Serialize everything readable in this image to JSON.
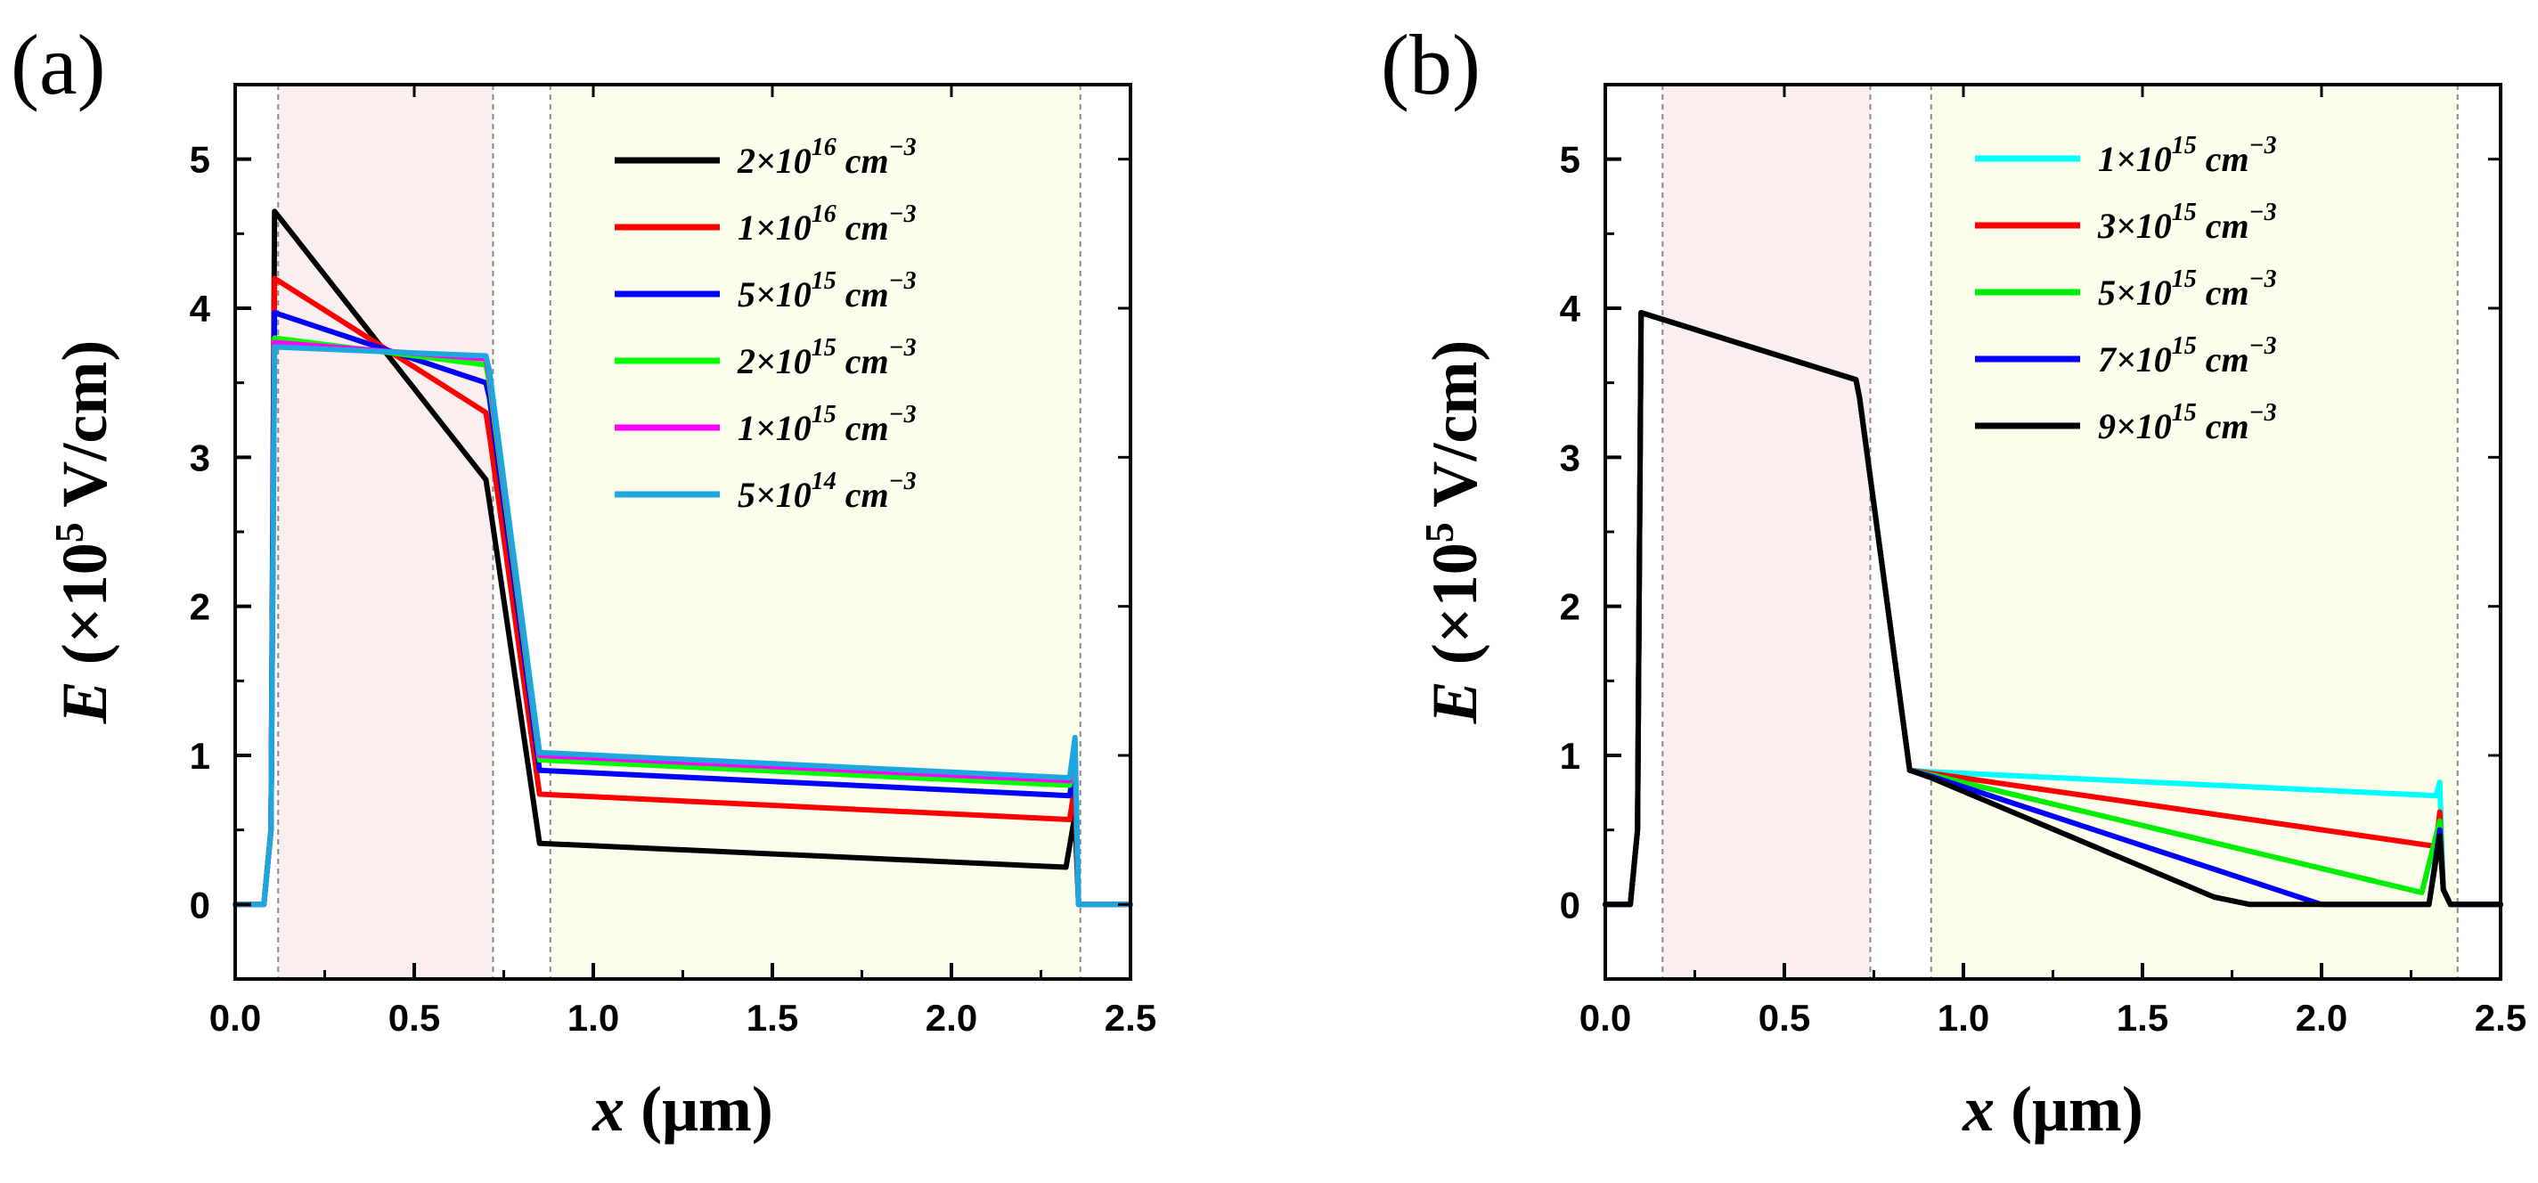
{
  "figure": {
    "panels": [
      {
        "id": "a",
        "label": "(a)",
        "xlabel_var": "x",
        "xlabel_unit": " (μm)",
        "ylabel_var": "E",
        "ylabel_unit_pre": " (×10",
        "ylabel_unit_exp": "5",
        "ylabel_unit_post": " V/cm)",
        "x_ticks": [
          "0.0",
          "0.5",
          "1.0",
          "1.5",
          "2.0",
          "2.5"
        ],
        "y_ticks": [
          "0",
          "1",
          "2",
          "3",
          "4",
          "5"
        ],
        "regions_color": {
          "pink": "#fbeeee",
          "yellow": "#fcfdeb",
          "boundary": "#888888"
        }
      },
      {
        "id": "b",
        "label": "(b)",
        "xlabel_var": "x",
        "xlabel_unit": " (μm)",
        "ylabel_var": "E",
        "ylabel_unit_pre": " (×10",
        "ylabel_unit_exp": "5",
        "ylabel_unit_post": " V/cm)",
        "x_ticks": [
          "0.0",
          "0.5",
          "1.0",
          "1.5",
          "2.0",
          "2.5"
        ],
        "y_ticks": [
          "0",
          "1",
          "2",
          "3",
          "4",
          "5"
        ],
        "regions_color": {
          "pink": "#fbeeee",
          "yellow": "#fcfdeb",
          "boundary": "#888888"
        }
      }
    ]
  },
  "chart_data": [
    {
      "type": "line",
      "panel": "a",
      "title": "",
      "xlabel": "x (μm)",
      "ylabel": "E (×10^5 V/cm)",
      "xlim": [
        0,
        2.5
      ],
      "ylim": [
        -0.5,
        5.5
      ],
      "x_ticks": [
        0,
        0.5,
        1,
        1.5,
        2,
        2.5
      ],
      "y_ticks": [
        0,
        1,
        2,
        3,
        4,
        5
      ],
      "legend_position": "top-right",
      "shaded_regions": [
        {
          "x0": 0.12,
          "x1": 0.72,
          "color": "pink"
        },
        {
          "x0": 0.88,
          "x1": 2.36,
          "color": "yellow"
        }
      ],
      "boundaries": [
        0.12,
        0.72,
        0.88,
        2.36
      ],
      "series": [
        {
          "name": "2×10^16 cm^-3",
          "base": "2×10",
          "exp": "16",
          "unit": " cm",
          "unit_exp": "−3",
          "color": "#000000",
          "x": [
            0,
            0.08,
            0.1,
            0.11,
            0.7,
            0.71,
            0.85,
            2.32,
            2.345,
            2.355,
            2.37,
            2.5
          ],
          "y": [
            0,
            0,
            0.5,
            4.65,
            2.85,
            2.7,
            0.41,
            0.25,
            0.6,
            0,
            0,
            0
          ]
        },
        {
          "name": "1×10^16 cm^-3",
          "base": "1×10",
          "exp": "16",
          "unit": " cm",
          "unit_exp": "−3",
          "color": "#ff0000",
          "x": [
            0,
            0.08,
            0.1,
            0.11,
            0.7,
            0.71,
            0.85,
            2.33,
            2.345,
            2.355,
            2.37,
            2.5
          ],
          "y": [
            0,
            0,
            0.5,
            4.2,
            3.3,
            3.15,
            0.74,
            0.57,
            0.8,
            0,
            0,
            0
          ]
        },
        {
          "name": "5×10^15 cm^-3",
          "base": "5×10",
          "exp": "15",
          "unit": " cm",
          "unit_exp": "−3",
          "color": "#0000ff",
          "x": [
            0,
            0.08,
            0.1,
            0.11,
            0.7,
            0.71,
            0.85,
            2.33,
            2.345,
            2.355,
            2.37,
            2.5
          ],
          "y": [
            0,
            0,
            0.5,
            3.97,
            3.5,
            3.4,
            0.9,
            0.73,
            0.95,
            0,
            0,
            0
          ]
        },
        {
          "name": "2×10^15 cm^-3",
          "base": "2×10",
          "exp": "15",
          "unit": " cm",
          "unit_exp": "−3",
          "color": "#00ff00",
          "x": [
            0,
            0.08,
            0.1,
            0.11,
            0.7,
            0.71,
            0.85,
            2.33,
            2.345,
            2.355,
            2.37,
            2.5
          ],
          "y": [
            0,
            0,
            0.5,
            3.8,
            3.62,
            3.5,
            0.97,
            0.8,
            1.05,
            0,
            0,
            0
          ]
        },
        {
          "name": "1×10^15 cm^-3",
          "base": "1×10",
          "exp": "15",
          "unit": " cm",
          "unit_exp": "−3",
          "color": "#ff00ff",
          "x": [
            0,
            0.08,
            0.1,
            0.11,
            0.7,
            0.71,
            0.85,
            2.33,
            2.345,
            2.355,
            2.37,
            2.5
          ],
          "y": [
            0,
            0,
            0.5,
            3.77,
            3.66,
            3.55,
            1.0,
            0.83,
            1.08,
            0,
            0,
            0
          ]
        },
        {
          "name": "5×10^14 cm^-3",
          "base": "5×10",
          "exp": "14",
          "unit": " cm",
          "unit_exp": "−3",
          "color": "#1ea7df",
          "x": [
            0,
            0.08,
            0.1,
            0.11,
            0.7,
            0.71,
            0.85,
            2.33,
            2.345,
            2.355,
            2.37,
            2.5
          ],
          "y": [
            0,
            0,
            0.5,
            3.74,
            3.68,
            3.58,
            1.02,
            0.85,
            1.12,
            0,
            0,
            0
          ]
        }
      ]
    },
    {
      "type": "line",
      "panel": "b",
      "title": "",
      "xlabel": "x (μm)",
      "ylabel": "E (×10^5 V/cm)",
      "xlim": [
        0,
        2.5
      ],
      "ylim": [
        -0.5,
        5.5
      ],
      "x_ticks": [
        0,
        0.5,
        1,
        1.5,
        2,
        2.5
      ],
      "y_ticks": [
        0,
        1,
        2,
        3,
        4,
        5
      ],
      "legend_position": "top-right",
      "shaded_regions": [
        {
          "x0": 0.16,
          "x1": 0.74,
          "color": "pink"
        },
        {
          "x0": 0.91,
          "x1": 2.38,
          "color": "yellow"
        }
      ],
      "boundaries": [
        0.16,
        0.74,
        0.91,
        2.38
      ],
      "series": [
        {
          "name": "1×10^15 cm^-3",
          "base": "1×10",
          "exp": "15",
          "unit": " cm",
          "unit_exp": "−3",
          "color": "#00ffff",
          "x": [
            0,
            0.07,
            0.09,
            0.1,
            0.7,
            0.71,
            0.85,
            0.91,
            2.32,
            2.33,
            2.34,
            2.36,
            2.5
          ],
          "y": [
            0,
            0,
            0.5,
            3.97,
            3.52,
            3.4,
            0.9,
            0.89,
            0.73,
            0.82,
            0.1,
            0,
            0
          ]
        },
        {
          "name": "3×10^15 cm^-3",
          "base": "3×10",
          "exp": "15",
          "unit": " cm",
          "unit_exp": "−3",
          "color": "#ff0000",
          "x": [
            0,
            0.07,
            0.09,
            0.1,
            0.7,
            0.71,
            0.85,
            0.91,
            2.32,
            2.33,
            2.34,
            2.36,
            2.5
          ],
          "y": [
            0,
            0,
            0.5,
            3.97,
            3.52,
            3.4,
            0.9,
            0.88,
            0.39,
            0.62,
            0.1,
            0,
            0
          ]
        },
        {
          "name": "5×10^15 cm^-3",
          "base": "5×10",
          "exp": "15",
          "unit": " cm",
          "unit_exp": "−3",
          "color": "#00ee00",
          "x": [
            0,
            0.07,
            0.09,
            0.1,
            0.7,
            0.71,
            0.85,
            0.91,
            2.28,
            2.33,
            2.34,
            2.36,
            2.5
          ],
          "y": [
            0,
            0,
            0.5,
            3.97,
            3.52,
            3.4,
            0.9,
            0.87,
            0.08,
            0.56,
            0.1,
            0,
            0
          ]
        },
        {
          "name": "7×10^15 cm^-3",
          "base": "7×10",
          "exp": "15",
          "unit": " cm",
          "unit_exp": "−3",
          "color": "#0000ff",
          "x": [
            0,
            0.07,
            0.09,
            0.1,
            0.7,
            0.71,
            0.85,
            0.91,
            2.0,
            2.3,
            2.33,
            2.34,
            2.36,
            2.5
          ],
          "y": [
            0,
            0,
            0.5,
            3.97,
            3.52,
            3.4,
            0.9,
            0.86,
            0.0,
            0.0,
            0.5,
            0.1,
            0,
            0
          ]
        },
        {
          "name": "9×10^15 cm^-3",
          "base": "9×10",
          "exp": "15",
          "unit": " cm",
          "unit_exp": "−3",
          "color": "#000000",
          "x": [
            0,
            0.07,
            0.09,
            0.1,
            0.7,
            0.71,
            0.85,
            0.91,
            1.7,
            1.8,
            2.3,
            2.33,
            2.34,
            2.36,
            2.5
          ],
          "y": [
            0,
            0,
            0.5,
            3.97,
            3.52,
            3.4,
            0.9,
            0.85,
            0.05,
            0.0,
            0.0,
            0.46,
            0.1,
            0,
            0
          ]
        }
      ]
    }
  ]
}
